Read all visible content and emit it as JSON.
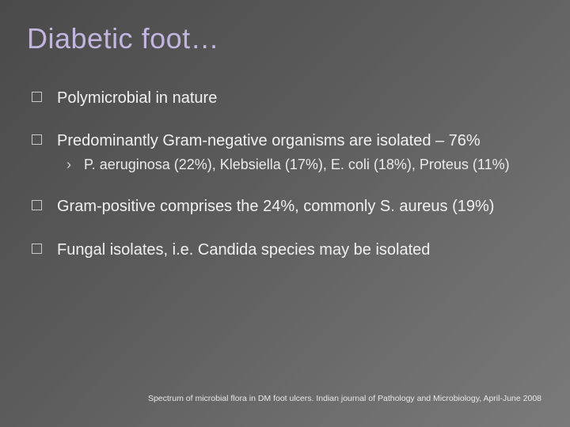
{
  "slide": {
    "background_gradient": [
      "#4a4a4a",
      "#5a5a5a",
      "#6b6b6b",
      "#7a7a7a"
    ],
    "title": {
      "text": "Diabetic foot…",
      "color": "#c2b6e0",
      "fontsize": 36,
      "weight": 400
    },
    "bullets": [
      {
        "text": "Polymicrobial in nature",
        "sub": []
      },
      {
        "text": "Predominantly Gram-negative organisms are isolated – 76%",
        "sub": [
          {
            "text": "P. aeruginosa (22%), Klebsiella (17%), E. coli (18%), Proteus (11%)"
          }
        ]
      },
      {
        "text": "Gram-positive comprises the 24%, commonly S. aureus (19%)",
        "sub": []
      },
      {
        "text": "Fungal isolates, i.e. Candida species may be isolated",
        "sub": []
      }
    ],
    "bullet_style": {
      "marker_border_color": "#c9c9c9",
      "text_color": "#f0f0f0",
      "fontsize": 20,
      "sub_marker": "›",
      "sub_marker_color": "#d0d0d0",
      "sub_text_color": "#eaeaea",
      "sub_fontsize": 18
    },
    "citation": {
      "text": "Spectrum of microbial flora in DM foot ulcers. Indian journal of Pathology and Microbiology, April-June 2008",
      "color": "#e8e8e8",
      "fontsize": 10.5
    }
  }
}
